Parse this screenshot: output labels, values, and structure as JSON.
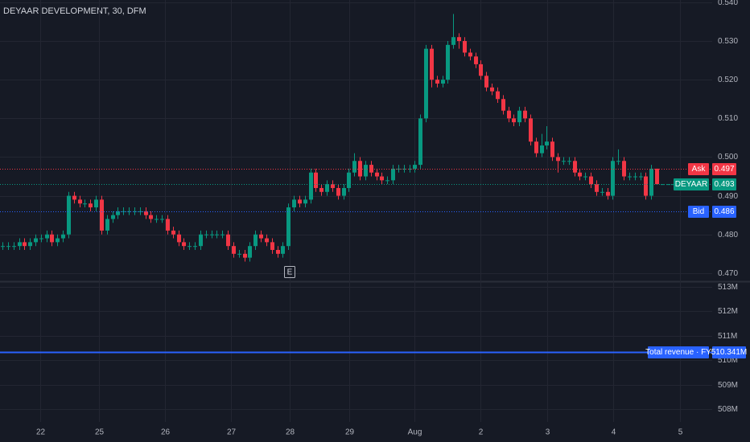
{
  "chart_data": [
    {
      "type": "candlestick",
      "title": "DEYAAR DEVELOPMENT, 30, DFM",
      "up_color": "#089981",
      "down_color": "#f23645",
      "grid": true,
      "ylim": [
        0.4679,
        0.5406
      ],
      "yticks": [
        {
          "value": 0.47,
          "label": "0.470"
        },
        {
          "value": 0.48,
          "label": "0.480"
        },
        {
          "value": 0.49,
          "label": "0.490"
        },
        {
          "value": 0.5,
          "label": "0.500"
        },
        {
          "value": 0.51,
          "label": "0.510"
        },
        {
          "value": 0.52,
          "label": "0.520"
        },
        {
          "value": 0.53,
          "label": "0.530"
        },
        {
          "value": 0.54,
          "label": "0.540"
        }
      ],
      "xlim": [
        -0.44,
        129.1
      ],
      "xticks": [
        {
          "value": 6.88,
          "label": "22"
        },
        {
          "value": 17.57,
          "label": "25"
        },
        {
          "value": 29.58,
          "label": "26"
        },
        {
          "value": 41.58,
          "label": "27"
        },
        {
          "value": 52.27,
          "label": "28"
        },
        {
          "value": 63.1,
          "label": "29"
        },
        {
          "value": 74.96,
          "label": "Aug"
        },
        {
          "value": 86.97,
          "label": "2"
        },
        {
          "value": 99.12,
          "label": "3"
        },
        {
          "value": 111.13,
          "label": "4"
        },
        {
          "value": 123.28,
          "label": "5"
        }
      ],
      "ohlc": [
        [
          0.477,
          0.478,
          0.476,
          0.477
        ],
        [
          0.477,
          0.478,
          0.476,
          0.477
        ],
        [
          0.477,
          0.478,
          0.476,
          0.477
        ],
        [
          0.477,
          0.479,
          0.476,
          0.478
        ],
        [
          0.478,
          0.479,
          0.476,
          0.477
        ],
        [
          0.477,
          0.479,
          0.476,
          0.478
        ],
        [
          0.478,
          0.48,
          0.477,
          0.479
        ],
        [
          0.479,
          0.48,
          0.478,
          0.479
        ],
        [
          0.479,
          0.481,
          0.478,
          0.48
        ],
        [
          0.48,
          0.481,
          0.477,
          0.478
        ],
        [
          0.478,
          0.48,
          0.477,
          0.479
        ],
        [
          0.479,
          0.481,
          0.478,
          0.48
        ],
        [
          0.48,
          0.491,
          0.479,
          0.49
        ],
        [
          0.49,
          0.491,
          0.488,
          0.489
        ],
        [
          0.489,
          0.49,
          0.487,
          0.488
        ],
        [
          0.488,
          0.489,
          0.487,
          0.488
        ],
        [
          0.488,
          0.489,
          0.486,
          0.487
        ],
        [
          0.487,
          0.49,
          0.486,
          0.489
        ],
        [
          0.489,
          0.49,
          0.48,
          0.481
        ],
        [
          0.481,
          0.485,
          0.48,
          0.484
        ],
        [
          0.484,
          0.486,
          0.483,
          0.485
        ],
        [
          0.485,
          0.487,
          0.484,
          0.486
        ],
        [
          0.486,
          0.487,
          0.485,
          0.486
        ],
        [
          0.486,
          0.487,
          0.485,
          0.486
        ],
        [
          0.486,
          0.487,
          0.485,
          0.486
        ],
        [
          0.486,
          0.487,
          0.485,
          0.486
        ],
        [
          0.486,
          0.487,
          0.484,
          0.485
        ],
        [
          0.485,
          0.486,
          0.483,
          0.484
        ],
        [
          0.484,
          0.485,
          0.483,
          0.484
        ],
        [
          0.484,
          0.485,
          0.483,
          0.484
        ],
        [
          0.484,
          0.485,
          0.48,
          0.481
        ],
        [
          0.481,
          0.482,
          0.479,
          0.48
        ],
        [
          0.48,
          0.481,
          0.477,
          0.478
        ],
        [
          0.478,
          0.479,
          0.476,
          0.477
        ],
        [
          0.477,
          0.478,
          0.476,
          0.477
        ],
        [
          0.477,
          0.478,
          0.476,
          0.477
        ],
        [
          0.477,
          0.481,
          0.476,
          0.48
        ],
        [
          0.48,
          0.481,
          0.479,
          0.48
        ],
        [
          0.48,
          0.481,
          0.479,
          0.48
        ],
        [
          0.48,
          0.481,
          0.479,
          0.48
        ],
        [
          0.48,
          0.481,
          0.479,
          0.48
        ],
        [
          0.48,
          0.481,
          0.476,
          0.477
        ],
        [
          0.477,
          0.478,
          0.474,
          0.475
        ],
        [
          0.475,
          0.476,
          0.474,
          0.475
        ],
        [
          0.475,
          0.476,
          0.473,
          0.474
        ],
        [
          0.474,
          0.478,
          0.473,
          0.477
        ],
        [
          0.477,
          0.481,
          0.476,
          0.48
        ],
        [
          0.48,
          0.481,
          0.478,
          0.479
        ],
        [
          0.479,
          0.48,
          0.477,
          0.478
        ],
        [
          0.478,
          0.479,
          0.475,
          0.476
        ],
        [
          0.476,
          0.477,
          0.474,
          0.475
        ],
        [
          0.475,
          0.478,
          0.474,
          0.477
        ],
        [
          0.477,
          0.488,
          0.476,
          0.487
        ],
        [
          0.487,
          0.49,
          0.486,
          0.489
        ],
        [
          0.489,
          0.49,
          0.487,
          0.488
        ],
        [
          0.488,
          0.49,
          0.487,
          0.489
        ],
        [
          0.489,
          0.497,
          0.488,
          0.496
        ],
        [
          0.496,
          0.497,
          0.491,
          0.492
        ],
        [
          0.492,
          0.493,
          0.49,
          0.491
        ],
        [
          0.491,
          0.494,
          0.49,
          0.493
        ],
        [
          0.493,
          0.494,
          0.491,
          0.492
        ],
        [
          0.492,
          0.493,
          0.489,
          0.49
        ],
        [
          0.49,
          0.493,
          0.489,
          0.492
        ],
        [
          0.492,
          0.497,
          0.491,
          0.496
        ],
        [
          0.496,
          0.501,
          0.495,
          0.499
        ],
        [
          0.499,
          0.5,
          0.494,
          0.495
        ],
        [
          0.495,
          0.499,
          0.494,
          0.498
        ],
        [
          0.498,
          0.499,
          0.495,
          0.496
        ],
        [
          0.496,
          0.497,
          0.494,
          0.495
        ],
        [
          0.495,
          0.496,
          0.493,
          0.494
        ],
        [
          0.494,
          0.495,
          0.493,
          0.494
        ],
        [
          0.494,
          0.498,
          0.493,
          0.497
        ],
        [
          0.497,
          0.498,
          0.496,
          0.497
        ],
        [
          0.497,
          0.498,
          0.496,
          0.497
        ],
        [
          0.497,
          0.498,
          0.496,
          0.497
        ],
        [
          0.497,
          0.499,
          0.496,
          0.498
        ],
        [
          0.498,
          0.511,
          0.497,
          0.51
        ],
        [
          0.51,
          0.529,
          0.509,
          0.528
        ],
        [
          0.528,
          0.529,
          0.518,
          0.52
        ],
        [
          0.52,
          0.521,
          0.518,
          0.519
        ],
        [
          0.519,
          0.521,
          0.518,
          0.52
        ],
        [
          0.52,
          0.53,
          0.519,
          0.529
        ],
        [
          0.529,
          0.537,
          0.528,
          0.531
        ],
        [
          0.531,
          0.532,
          0.528,
          0.53
        ],
        [
          0.53,
          0.531,
          0.526,
          0.527
        ],
        [
          0.527,
          0.528,
          0.525,
          0.526
        ],
        [
          0.526,
          0.527,
          0.523,
          0.524
        ],
        [
          0.524,
          0.525,
          0.52,
          0.521
        ],
        [
          0.521,
          0.522,
          0.517,
          0.518
        ],
        [
          0.518,
          0.519,
          0.516,
          0.517
        ],
        [
          0.517,
          0.518,
          0.514,
          0.515
        ],
        [
          0.515,
          0.516,
          0.511,
          0.512
        ],
        [
          0.512,
          0.513,
          0.509,
          0.51
        ],
        [
          0.51,
          0.511,
          0.508,
          0.509
        ],
        [
          0.509,
          0.513,
          0.508,
          0.512
        ],
        [
          0.512,
          0.513,
          0.509,
          0.51
        ],
        [
          0.51,
          0.511,
          0.503,
          0.504
        ],
        [
          0.504,
          0.505,
          0.5,
          0.501
        ],
        [
          0.501,
          0.506,
          0.5,
          0.503
        ],
        [
          0.503,
          0.508,
          0.502,
          0.504
        ],
        [
          0.504,
          0.505,
          0.499,
          0.5
        ],
        [
          0.5,
          0.501,
          0.496,
          0.499
        ],
        [
          0.499,
          0.5,
          0.498,
          0.499
        ],
        [
          0.499,
          0.5,
          0.498,
          0.499
        ],
        [
          0.499,
          0.5,
          0.495,
          0.496
        ],
        [
          0.496,
          0.497,
          0.494,
          0.495
        ],
        [
          0.495,
          0.496,
          0.494,
          0.495
        ],
        [
          0.495,
          0.496,
          0.492,
          0.493
        ],
        [
          0.493,
          0.494,
          0.49,
          0.491
        ],
        [
          0.491,
          0.492,
          0.49,
          0.491
        ],
        [
          0.491,
          0.492,
          0.489,
          0.49
        ],
        [
          0.49,
          0.5,
          0.489,
          0.499
        ],
        [
          0.499,
          0.502,
          0.498,
          0.499
        ],
        [
          0.499,
          0.5,
          0.494,
          0.495
        ],
        [
          0.495,
          0.496,
          0.494,
          0.495
        ],
        [
          0.495,
          0.496,
          0.494,
          0.495
        ],
        [
          0.495,
          0.496,
          0.494,
          0.495
        ],
        [
          0.495,
          0.496,
          0.489,
          0.49
        ],
        [
          0.49,
          0.498,
          0.489,
          0.497
        ],
        [
          0.497,
          0.497,
          0.493,
          0.493
        ],
        [
          0.493,
          0.493,
          0.493,
          0.493
        ],
        [
          0.493,
          0.493,
          0.493,
          0.493
        ],
        [
          0.493,
          0.493,
          0.493,
          0.493
        ]
      ],
      "price_lines": [
        {
          "name": "Ask",
          "value": 0.497,
          "color": "#f23645"
        },
        {
          "name": "DEYAAR",
          "value": 0.493,
          "color": "#089981"
        },
        {
          "name": "Bid",
          "value": 0.486,
          "color": "#2962ff"
        }
      ],
      "earnings_marker": "E"
    },
    {
      "type": "indicator-line",
      "name": "Total revenue · FY",
      "value": 510.341,
      "value_label": "510.341M",
      "color": "#2962ff",
      "ylim": [
        507.48,
        513.16
      ],
      "yticks": [
        {
          "value": 508,
          "label": "508M"
        },
        {
          "value": 509,
          "label": "509M"
        },
        {
          "value": 510,
          "label": "510M"
        },
        {
          "value": 511,
          "label": "511M"
        },
        {
          "value": 512,
          "label": "512M"
        },
        {
          "value": 513,
          "label": "513M"
        }
      ]
    }
  ]
}
